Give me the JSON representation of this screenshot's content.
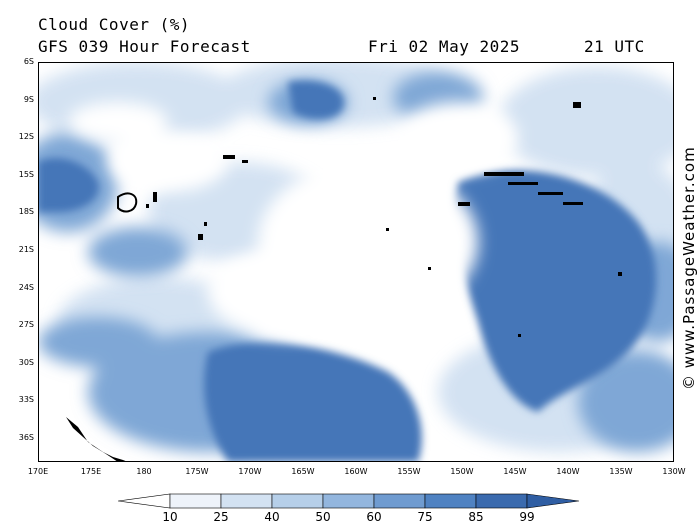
{
  "header": {
    "title": "Cloud Cover (%)",
    "subtitle": "GFS 039 Hour Forecast",
    "date": "Fri 02 May 2025",
    "time": "21 UTC"
  },
  "credit": "© www.PassageWeather.com",
  "axes": {
    "lat_labels": [
      "6S",
      "9S",
      "12S",
      "15S",
      "18S",
      "21S",
      "24S",
      "27S",
      "30S",
      "33S",
      "36S"
    ],
    "lon_labels": [
      "170E",
      "175E",
      "180",
      "175W",
      "170W",
      "165W",
      "160W",
      "155W",
      "150W",
      "145W",
      "140W",
      "135W",
      "130W"
    ]
  },
  "colorbar": {
    "ticks": [
      "10",
      "25",
      "40",
      "50",
      "60",
      "75",
      "85",
      "99"
    ],
    "colors": [
      "#ffffff",
      "#eef3fa",
      "#d3e2f2",
      "#b6cfe9",
      "#93b6de",
      "#6f9bd0",
      "#4f82c2",
      "#3a6aae"
    ]
  },
  "palette": {
    "clear": "#ffffff",
    "light": "#cfdff1",
    "medium": "#7fa7d6",
    "dense": "#4a7dbd",
    "overcast": "#3e6cb0",
    "land": "#000000"
  }
}
